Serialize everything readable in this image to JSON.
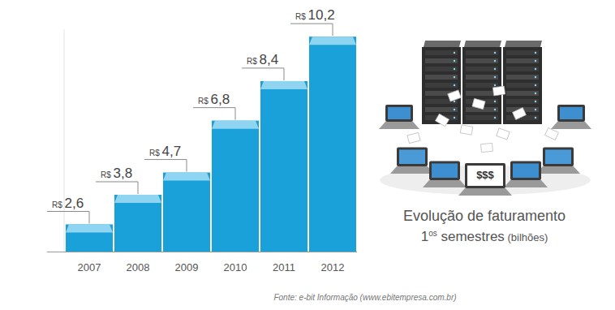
{
  "chart_data": {
    "type": "bar",
    "title": "Evolução de faturamento",
    "subtitle": "1os semestres (bilhões)",
    "source": "Fonte: e-bit Informação (www.ebitempresa.com.br)",
    "annotations": [
      "$$$"
    ],
    "categories": [
      "2007",
      "2008",
      "2009",
      "2010",
      "2011",
      "2012"
    ],
    "values": [
      2.6,
      3.8,
      4.7,
      6.8,
      8.4,
      10.2
    ],
    "value_labels": [
      "R$ 2,6",
      "R$ 3,8",
      "R$ 4,7",
      "R$ 6,8",
      "R$ 8,4",
      "R$ 10,2"
    ],
    "color": "#1ba1d9",
    "ylim": [
      1.5,
      10.5
    ],
    "data_labels": true,
    "tick_labels": "x"
  }
}
